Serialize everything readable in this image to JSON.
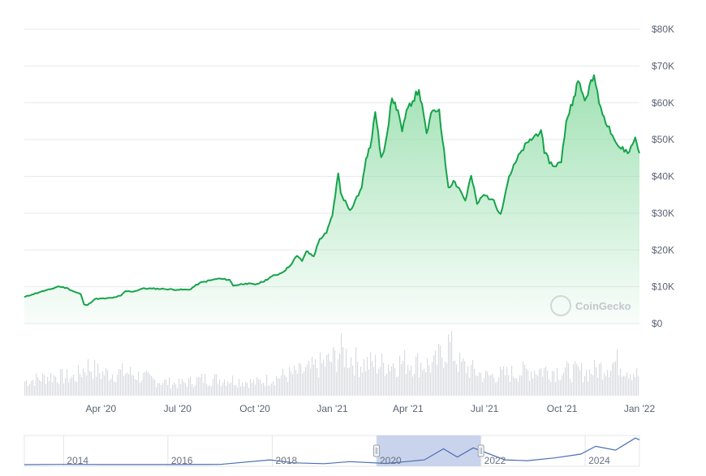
{
  "chart_data": {
    "type": "area",
    "currency_axis": {
      "ticks": [
        "$0",
        "$10K",
        "$20K",
        "$30K",
        "$40K",
        "$50K",
        "$60K",
        "$70K",
        "$80K"
      ],
      "ylim": [
        0,
        80000
      ]
    },
    "x_tick_labels": [
      {
        "date": "2020-04-01",
        "label": "Apr '20"
      },
      {
        "date": "2020-07-01",
        "label": "Jul '20"
      },
      {
        "date": "2020-10-01",
        "label": "Oct '20"
      },
      {
        "date": "2021-01-01",
        "label": "Jan '21"
      },
      {
        "date": "2021-04-01",
        "label": "Apr '21"
      },
      {
        "date": "2021-07-01",
        "label": "Jul '21"
      },
      {
        "date": "2021-10-01",
        "label": "Oct '21"
      },
      {
        "date": "2022-01-01",
        "label": "Jan '22"
      }
    ],
    "xlim": [
      "2020-01-01",
      "2022-01-01"
    ],
    "price_series": [
      [
        "2020-01-01",
        7200
      ],
      [
        "2020-01-10",
        7900
      ],
      [
        "2020-01-20",
        8600
      ],
      [
        "2020-02-01",
        9300
      ],
      [
        "2020-02-10",
        10100
      ],
      [
        "2020-02-20",
        9700
      ],
      [
        "2020-03-01",
        8600
      ],
      [
        "2020-03-08",
        8000
      ],
      [
        "2020-03-12",
        5200
      ],
      [
        "2020-03-16",
        5000
      ],
      [
        "2020-03-25",
        6700
      ],
      [
        "2020-04-05",
        6800
      ],
      [
        "2020-04-15",
        7000
      ],
      [
        "2020-04-25",
        7600
      ],
      [
        "2020-04-30",
        8800
      ],
      [
        "2020-05-10",
        8700
      ],
      [
        "2020-05-20",
        9500
      ],
      [
        "2020-06-01",
        9500
      ],
      [
        "2020-06-15",
        9400
      ],
      [
        "2020-07-01",
        9200
      ],
      [
        "2020-07-15",
        9200
      ],
      [
        "2020-07-27",
        11000
      ],
      [
        "2020-08-10",
        11800
      ],
      [
        "2020-08-18",
        12200
      ],
      [
        "2020-09-01",
        11900
      ],
      [
        "2020-09-05",
        10300
      ],
      [
        "2020-09-20",
        10900
      ],
      [
        "2020-10-01",
        10600
      ],
      [
        "2020-10-10",
        11300
      ],
      [
        "2020-10-21",
        12800
      ],
      [
        "2020-11-01",
        13700
      ],
      [
        "2020-11-10",
        15300
      ],
      [
        "2020-11-20",
        18400
      ],
      [
        "2020-11-26",
        17000
      ],
      [
        "2020-12-01",
        19600
      ],
      [
        "2020-12-10",
        18300
      ],
      [
        "2020-12-17",
        23000
      ],
      [
        "2020-12-25",
        24600
      ],
      [
        "2021-01-01",
        29300
      ],
      [
        "2021-01-08",
        40800
      ],
      [
        "2021-01-11",
        35500
      ],
      [
        "2021-01-22",
        30800
      ],
      [
        "2021-01-28",
        33400
      ],
      [
        "2021-02-05",
        37000
      ],
      [
        "2021-02-10",
        44800
      ],
      [
        "2021-02-15",
        47800
      ],
      [
        "2021-02-21",
        57500
      ],
      [
        "2021-02-28",
        45200
      ],
      [
        "2021-03-05",
        48800
      ],
      [
        "2021-03-13",
        61200
      ],
      [
        "2021-03-20",
        58000
      ],
      [
        "2021-03-25",
        52200
      ],
      [
        "2021-04-01",
        58700
      ],
      [
        "2021-04-14",
        63500
      ],
      [
        "2021-04-23",
        51700
      ],
      [
        "2021-04-30",
        57800
      ],
      [
        "2021-05-08",
        58200
      ],
      [
        "2021-05-12",
        49700
      ],
      [
        "2021-05-19",
        37000
      ],
      [
        "2021-05-25",
        38800
      ],
      [
        "2021-06-01",
        36700
      ],
      [
        "2021-06-08",
        33400
      ],
      [
        "2021-06-15",
        40200
      ],
      [
        "2021-06-22",
        32500
      ],
      [
        "2021-06-30",
        35000
      ],
      [
        "2021-07-10",
        33800
      ],
      [
        "2021-07-20",
        29800
      ],
      [
        "2021-07-30",
        40000
      ],
      [
        "2021-08-14",
        47000
      ],
      [
        "2021-08-22",
        49300
      ],
      [
        "2021-09-06",
        52600
      ],
      [
        "2021-09-10",
        46300
      ],
      [
        "2021-09-20",
        42800
      ],
      [
        "2021-09-30",
        43800
      ],
      [
        "2021-10-06",
        55000
      ],
      [
        "2021-10-15",
        61600
      ],
      [
        "2021-10-20",
        65900
      ],
      [
        "2021-10-28",
        60600
      ],
      [
        "2021-11-08",
        67500
      ],
      [
        "2021-11-10",
        64900
      ],
      [
        "2021-11-18",
        56900
      ],
      [
        "2021-11-26",
        53600
      ],
      [
        "2021-12-04",
        49200
      ],
      [
        "2021-12-10",
        47500
      ],
      [
        "2021-12-20",
        46700
      ],
      [
        "2021-12-27",
        50600
      ],
      [
        "2022-01-01",
        46300
      ]
    ],
    "volume_series": [
      [
        "2020-01-01",
        0.22
      ],
      [
        "2020-02-01",
        0.3
      ],
      [
        "2020-03-01",
        0.28
      ],
      [
        "2020-03-15",
        0.46
      ],
      [
        "2020-04-01",
        0.34
      ],
      [
        "2020-05-01",
        0.36
      ],
      [
        "2020-06-01",
        0.24
      ],
      [
        "2020-07-01",
        0.18
      ],
      [
        "2020-08-01",
        0.26
      ],
      [
        "2020-09-01",
        0.25
      ],
      [
        "2020-10-01",
        0.2
      ],
      [
        "2020-11-01",
        0.3
      ],
      [
        "2020-12-01",
        0.38
      ],
      [
        "2021-01-01",
        0.55
      ],
      [
        "2021-01-10",
        0.68
      ],
      [
        "2021-02-01",
        0.5
      ],
      [
        "2021-03-01",
        0.48
      ],
      [
        "2021-04-01",
        0.52
      ],
      [
        "2021-05-01",
        0.46
      ],
      [
        "2021-05-19",
        0.8
      ],
      [
        "2021-06-01",
        0.48
      ],
      [
        "2021-07-01",
        0.3
      ],
      [
        "2021-08-01",
        0.34
      ],
      [
        "2021-09-01",
        0.4
      ],
      [
        "2021-10-01",
        0.38
      ],
      [
        "2021-11-01",
        0.36
      ],
      [
        "2021-12-04",
        0.52
      ],
      [
        "2022-01-01",
        0.3
      ]
    ],
    "navigator": {
      "labels": [
        "2014",
        "2016",
        "2018",
        "2020",
        "2022",
        "2024"
      ],
      "series": [
        [
          "2013-04-01",
          100
        ],
        [
          "2013-12-01",
          900
        ],
        [
          "2015-01-01",
          300
        ],
        [
          "2016-01-01",
          430
        ],
        [
          "2017-01-01",
          1000
        ],
        [
          "2017-12-17",
          19000
        ],
        [
          "2018-06-01",
          7000
        ],
        [
          "2019-01-01",
          3800
        ],
        [
          "2019-06-26",
          12000
        ],
        [
          "2020-03-12",
          5000
        ],
        [
          "2020-12-01",
          19000
        ],
        [
          "2021-04-14",
          63000
        ],
        [
          "2021-07-20",
          30000
        ],
        [
          "2021-11-08",
          67000
        ],
        [
          "2022-06-18",
          19000
        ],
        [
          "2022-11-21",
          16000
        ],
        [
          "2023-06-01",
          27000
        ],
        [
          "2023-12-01",
          42000
        ],
        [
          "2024-03-14",
          73000
        ],
        [
          "2024-08-01",
          58000
        ],
        [
          "2024-12-17",
          106000
        ],
        [
          "2025-01-15",
          99000
        ]
      ],
      "selected_range": [
        "2020-01-01",
        "2022-01-01"
      ]
    }
  },
  "watermark": "CoinGecko",
  "colors": {
    "line": "#16a34a",
    "area_top": "#8fdca6",
    "grid": "#e7e9ee",
    "volume": "#d9dbe0",
    "navigator_line": "#4a6fb5",
    "navigator_band": "#c9d3ec"
  }
}
